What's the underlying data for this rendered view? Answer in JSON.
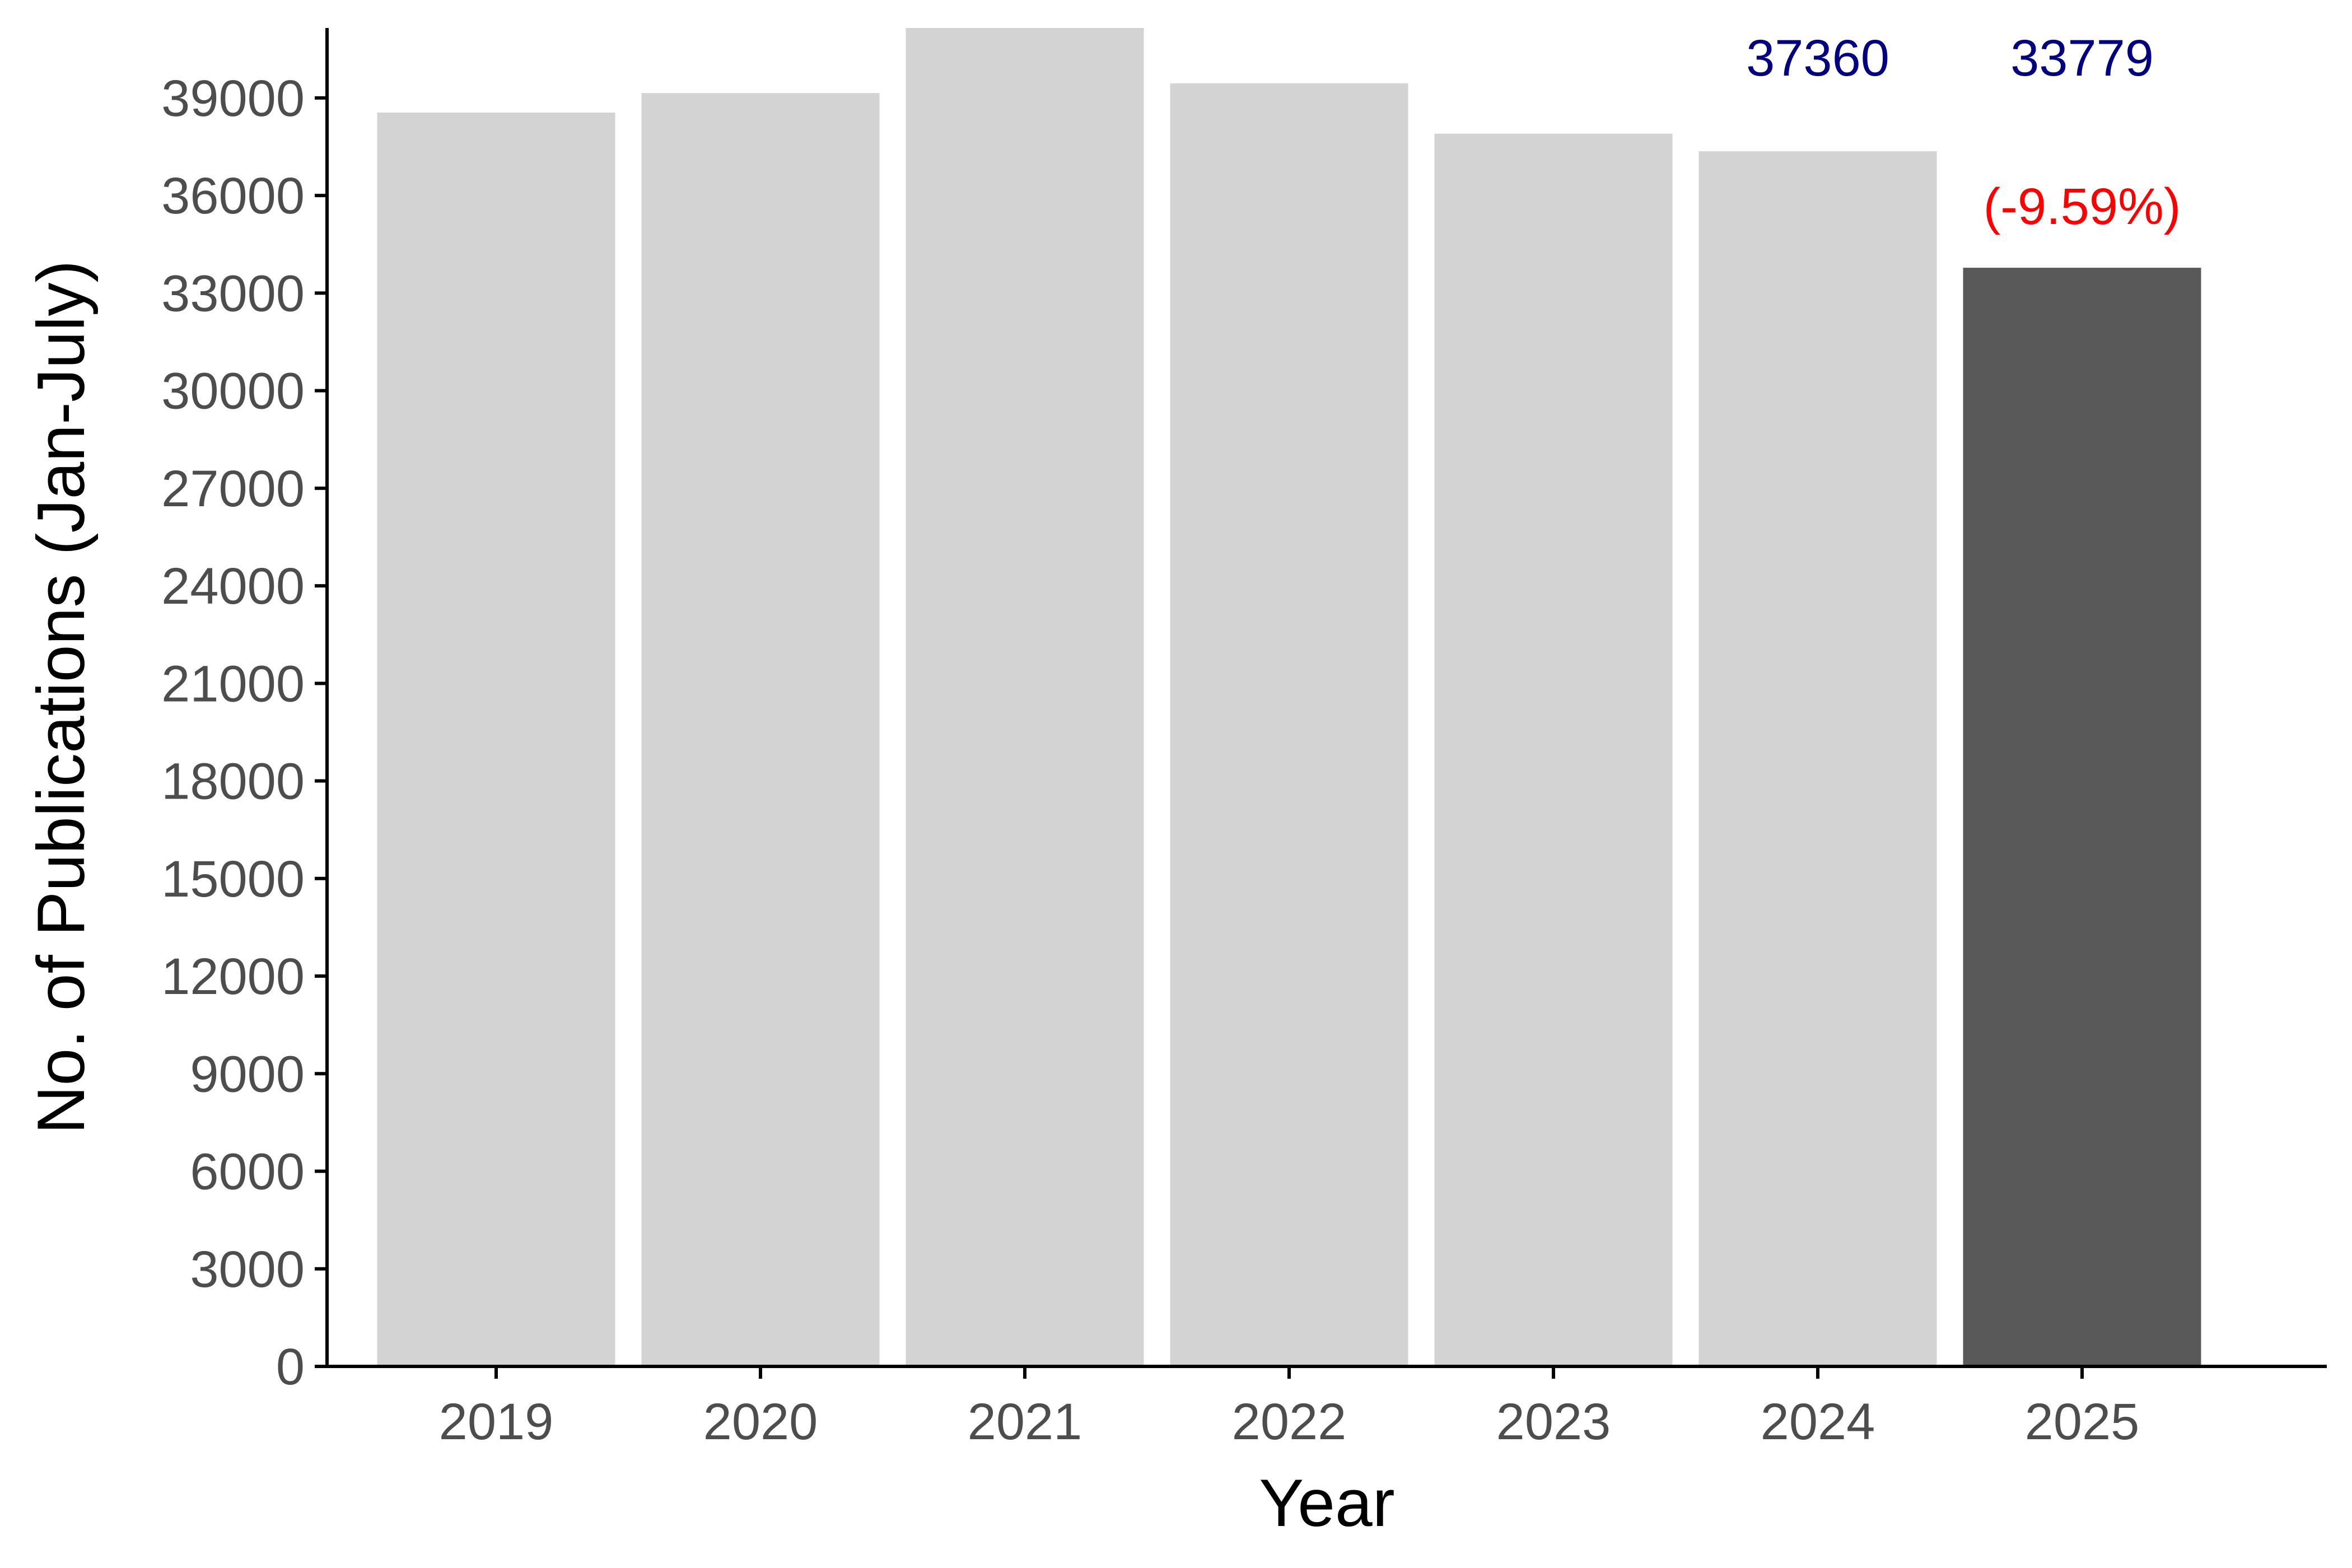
{
  "chart_data": {
    "type": "bar",
    "title": "",
    "xlabel": "Year",
    "ylabel": "No. of Publications (Jan-July)",
    "categories": [
      "2019",
      "2020",
      "2021",
      "2022",
      "2023",
      "2024",
      "2025"
    ],
    "values": [
      38550,
      39150,
      41150,
      39450,
      37900,
      37360,
      33779
    ],
    "ylim": [
      0,
      41150
    ],
    "yticks": [
      "0",
      "3000",
      "6000",
      "9000",
      "12000",
      "15000",
      "18000",
      "21000",
      "24000",
      "27000",
      "30000",
      "33000",
      "36000",
      "39000"
    ],
    "grid": false,
    "legend": "none",
    "colors": {
      "default_bar": "#d3d3d3",
      "highlight_bar": "#595959",
      "value_label": "#000080",
      "pct_label": "#ff0000",
      "tick_text": "#4d4d4d",
      "axis": "#000000"
    },
    "highlight_index": 6,
    "annotations": [
      {
        "category": "2024",
        "text": "37360",
        "kind": "value"
      },
      {
        "category": "2025",
        "text": "33779",
        "kind": "value"
      },
      {
        "category": "2025",
        "text": "(-9.59%)",
        "kind": "pct"
      }
    ]
  }
}
